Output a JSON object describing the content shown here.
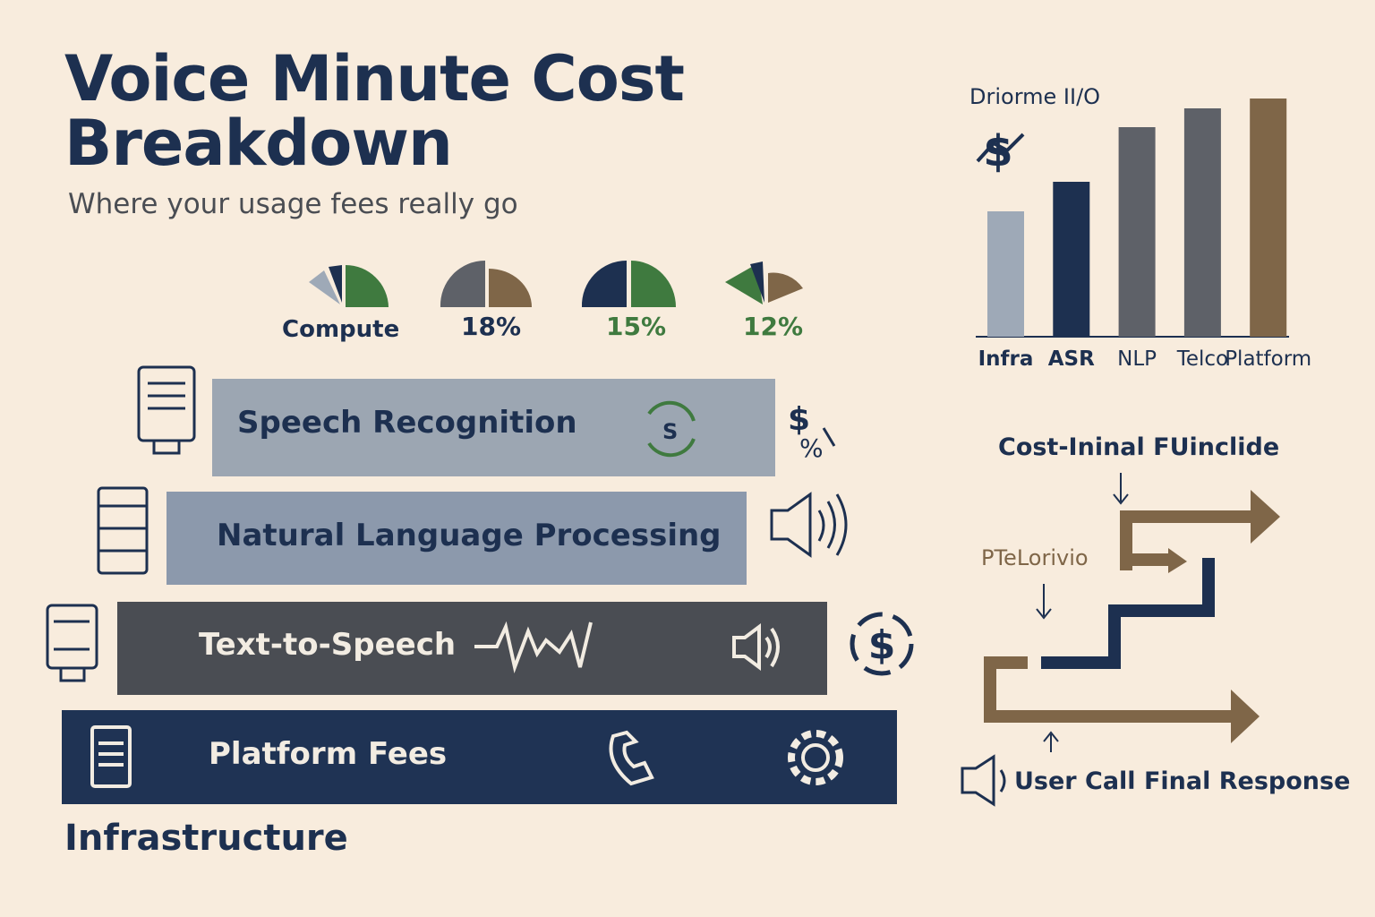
{
  "header": {
    "title": "Voice Minute Cost Breakdown",
    "subtitle": "Where your usage fees really go"
  },
  "gauges": [
    "Compute",
    "18%",
    "15%",
    "12%"
  ],
  "layers": [
    "Speech Recognition",
    "Natural Language Processing",
    "Text-to-Speech",
    "Platform Fees"
  ],
  "base_label": "Infrastructure",
  "chart_data": {
    "type": "bar",
    "title": "Driorme II/O",
    "categories": [
      "Infra",
      "ASR",
      "NLP",
      "Telco",
      "Platform"
    ],
    "values": [
      140,
      173,
      234,
      255,
      266
    ],
    "colors": [
      "#9ea9b7",
      "#1d3050",
      "#5e6168",
      "#5e6168",
      "#7f6648"
    ],
    "ylim": [
      0,
      280
    ]
  },
  "flow": {
    "title": "Cost-Ininal FUinclide",
    "middle_label": "PTeLorivio",
    "footer": "User Call Final Response"
  }
}
